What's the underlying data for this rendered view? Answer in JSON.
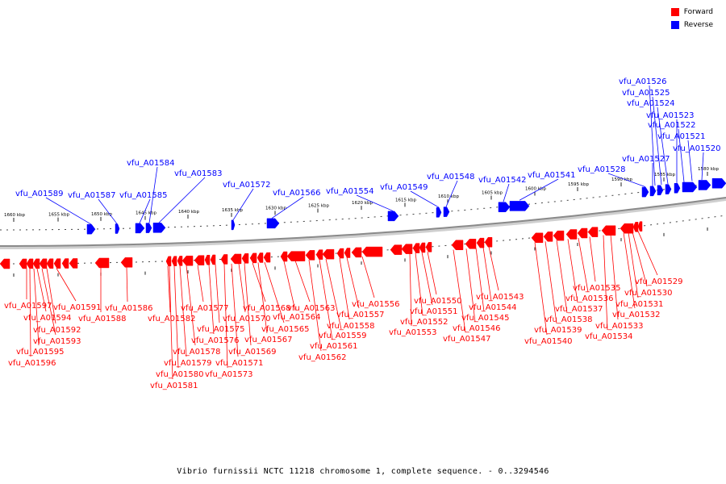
{
  "legend": {
    "forward_label": "Forward",
    "reverse_label": "Reverse",
    "forward_color": "#ff0000",
    "reverse_color": "#0000ff"
  },
  "caption": "Vibrio furnissii NCTC 11218 chromosome 1, complete sequence. - 0..3294546",
  "axis": {
    "tick_labels": [
      "1660 kbp",
      "1655 kbp",
      "1650 kbp",
      "1645 kbp",
      "1640 kbp",
      "1635 kbp",
      "1630 kbp",
      "1625 kbp",
      "1620 kbp",
      "1615 kbp",
      "1610 kbp",
      "1605 kbp",
      "1600 kbp",
      "1595 kbp",
      "1590 kbp",
      "1585 kbp",
      "1580 kbp"
    ]
  },
  "reverse_genes": [
    "vfu_A01589",
    "vfu_A01587",
    "vfu_A01585",
    "vfu_A01584",
    "vfu_A01583",
    "vfu_A01572",
    "vfu_A01566",
    "vfu_A01554",
    "vfu_A01549",
    "vfu_A01548",
    "vfu_A01542",
    "vfu_A01541",
    "vfu_A01528",
    "vfu_A01527",
    "vfu_A01526",
    "vfu_A01525",
    "vfu_A01524",
    "vfu_A01523",
    "vfu_A01522",
    "vfu_A01521",
    "vfu_A01520"
  ],
  "forward_genes": [
    "vfu_A01597",
    "vfu_A01596",
    "vfu_A01595",
    "vfu_A01594",
    "vfu_A01593",
    "vfu_A01592",
    "vfu_A01591",
    "vfu_A01588",
    "vfu_A01586",
    "vfu_A01582",
    "vfu_A01581",
    "vfu_A01580",
    "vfu_A01579",
    "vfu_A01578",
    "vfu_A01577",
    "vfu_A01576",
    "vfu_A01575",
    "vfu_A01573",
    "vfu_A01571",
    "vfu_A01570",
    "vfu_A01569",
    "vfu_A01568",
    "vfu_A01567",
    "vfu_A01565",
    "vfu_A01564",
    "vfu_A01563",
    "vfu_A01562",
    "vfu_A01561",
    "vfu_A01559",
    "vfu_A01558",
    "vfu_A01557",
    "vfu_A01556",
    "vfu_A01553",
    "vfu_A01552",
    "vfu_A01551",
    "vfu_A01550",
    "vfu_A01547",
    "vfu_A01546",
    "vfu_A01545",
    "vfu_A01544",
    "vfu_A01543",
    "vfu_A01540",
    "vfu_A01539",
    "vfu_A01538",
    "vfu_A01537",
    "vfu_A01536",
    "vfu_A01535",
    "vfu_A01534",
    "vfu_A01533",
    "vfu_A01532",
    "vfu_A01531",
    "vfu_A01530",
    "vfu_A01529"
  ]
}
